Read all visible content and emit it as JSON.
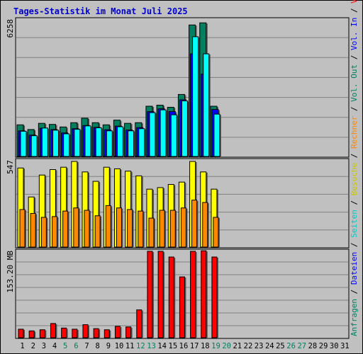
{
  "title": "Tages-Statistik im Monat Juli 2025",
  "colors": {
    "background": "#c0c0c0",
    "title": "#0000cc",
    "anfragen": "#008060",
    "dateien": "#0000ff",
    "seiten": "#00ffff",
    "besuche": "#ffff00",
    "rechner": "#ff8800",
    "volumen": "#ff0000",
    "grid": "#808080"
  },
  "right_labels": {
    "top": [
      {
        "text": "Anfragen",
        "color": "#008060"
      },
      {
        "text": " / ",
        "color": "#000000"
      },
      {
        "text": "Dateien",
        "color": "#0000ff"
      },
      {
        "text": " / ",
        "color": "#000000"
      },
      {
        "text": "Seiten",
        "color": "#00c8c8"
      },
      {
        "text": " / ",
        "color": "#000000"
      },
      {
        "text": "Besuche",
        "color": "#c8c800"
      },
      {
        "text": " / ",
        "color": "#000000"
      },
      {
        "text": "Rechner",
        "color": "#ff8800"
      },
      {
        "text": " / ",
        "color": "#000000"
      },
      {
        "text": "Vol. Out",
        "color": "#008060"
      },
      {
        "text": " / ",
        "color": "#000000"
      },
      {
        "text": "Vol. In",
        "color": "#0000ff"
      },
      {
        "text": " / ",
        "color": "#000000"
      },
      {
        "text": "Volumen",
        "color": "#ff0000"
      }
    ]
  },
  "chart_data": [
    {
      "type": "bar",
      "panel": "top",
      "max_label": "6258",
      "ylim": [
        0,
        6258
      ],
      "categories": [
        "1",
        "2",
        "3",
        "4",
        "5",
        "6",
        "7",
        "8",
        "9",
        "10",
        "11",
        "12",
        "13",
        "14",
        "15",
        "16",
        "17",
        "18",
        "19",
        "20",
        "21",
        "22",
        "23",
        "24",
        "25",
        "26",
        "27",
        "28",
        "29",
        "30",
        "31"
      ],
      "series": [
        {
          "name": "Anfragen",
          "values": [
            1480,
            1260,
            1550,
            1500,
            1380,
            1580,
            1790,
            1580,
            1480,
            1700,
            1550,
            1580,
            2350,
            2400,
            2300,
            2900,
            6150,
            6250,
            2350,
            0,
            0,
            0,
            0,
            0,
            0,
            0,
            0,
            0,
            0,
            0,
            0
          ]
        },
        {
          "name": "Dateien",
          "values": [
            1200,
            1000,
            1320,
            1260,
            1100,
            1300,
            1450,
            1360,
            1250,
            1420,
            1240,
            1350,
            2100,
            2230,
            2100,
            2650,
            4800,
            3850,
            2200,
            0,
            0,
            0,
            0,
            0,
            0,
            0,
            0,
            0,
            0,
            0,
            0
          ]
        },
        {
          "name": "Seiten",
          "values": [
            1180,
            970,
            1330,
            1230,
            1060,
            1270,
            1430,
            1340,
            1200,
            1390,
            1200,
            1300,
            2050,
            2180,
            1950,
            2600,
            5600,
            4800,
            1980,
            0,
            0,
            0,
            0,
            0,
            0,
            0,
            0,
            0,
            0,
            0,
            0
          ]
        }
      ]
    },
    {
      "type": "bar",
      "panel": "middle",
      "max_label": "547",
      "ylim": [
        0,
        547
      ],
      "categories": [
        "1",
        "2",
        "3",
        "4",
        "5",
        "6",
        "7",
        "8",
        "9",
        "10",
        "11",
        "12",
        "13",
        "14",
        "15",
        "16",
        "17",
        "18",
        "19",
        "20",
        "21",
        "22",
        "23",
        "24",
        "25",
        "26",
        "27",
        "28",
        "29",
        "30",
        "31"
      ],
      "series": [
        {
          "name": "Besuche",
          "values": [
            505,
            320,
            460,
            495,
            510,
            547,
            480,
            420,
            510,
            500,
            485,
            455,
            370,
            380,
            400,
            415,
            547,
            480,
            370,
            0,
            0,
            0,
            0,
            0,
            0,
            0,
            0,
            0,
            0,
            0,
            0
          ]
        },
        {
          "name": "Rechner",
          "values": [
            240,
            215,
            190,
            195,
            230,
            250,
            235,
            200,
            265,
            250,
            240,
            230,
            185,
            235,
            235,
            250,
            300,
            285,
            190,
            0,
            0,
            0,
            0,
            0,
            0,
            0,
            0,
            0,
            0,
            0,
            0
          ]
        }
      ]
    },
    {
      "type": "bar",
      "panel": "bottom",
      "max_label": "153.20 MB",
      "ylim": [
        0,
        153.2
      ],
      "categories": [
        "1",
        "2",
        "3",
        "4",
        "5",
        "6",
        "7",
        "8",
        "9",
        "10",
        "11",
        "12",
        "13",
        "14",
        "15",
        "16",
        "17",
        "18",
        "19",
        "20",
        "21",
        "22",
        "23",
        "24",
        "25",
        "26",
        "27",
        "28",
        "29",
        "30",
        "31"
      ],
      "series": [
        {
          "name": "Volumen",
          "values": [
            15,
            12,
            14,
            25,
            17,
            15,
            23,
            16,
            14,
            20,
            19,
            49,
            152,
            152,
            142,
            107,
            152,
            153,
            142,
            0,
            0,
            0,
            0,
            0,
            0,
            0,
            0,
            0,
            0,
            0,
            0
          ]
        }
      ]
    }
  ],
  "x_labels": [
    {
      "text": "1",
      "color": "#000000"
    },
    {
      "text": "2",
      "color": "#000000"
    },
    {
      "text": "3",
      "color": "#000000"
    },
    {
      "text": "4",
      "color": "#000000"
    },
    {
      "text": "5",
      "color": "#008060"
    },
    {
      "text": "6",
      "color": "#008060"
    },
    {
      "text": "7",
      "color": "#000000"
    },
    {
      "text": "8",
      "color": "#000000"
    },
    {
      "text": "9",
      "color": "#000000"
    },
    {
      "text": "10",
      "color": "#000000"
    },
    {
      "text": "11",
      "color": "#000000"
    },
    {
      "text": "12",
      "color": "#008060"
    },
    {
      "text": "13",
      "color": "#008060"
    },
    {
      "text": "14",
      "color": "#000000"
    },
    {
      "text": "15",
      "color": "#000000"
    },
    {
      "text": "16",
      "color": "#000000"
    },
    {
      "text": "17",
      "color": "#000000"
    },
    {
      "text": "18",
      "color": "#000000"
    },
    {
      "text": "19",
      "color": "#008060"
    },
    {
      "text": "20",
      "color": "#008060"
    },
    {
      "text": "21",
      "color": "#000000"
    },
    {
      "text": "22",
      "color": "#000000"
    },
    {
      "text": "23",
      "color": "#000000"
    },
    {
      "text": "24",
      "color": "#000000"
    },
    {
      "text": "25",
      "color": "#000000"
    },
    {
      "text": "26",
      "color": "#008060"
    },
    {
      "text": "27",
      "color": "#008060"
    },
    {
      "text": "28",
      "color": "#000000"
    },
    {
      "text": "29",
      "color": "#000000"
    },
    {
      "text": "30",
      "color": "#000000"
    },
    {
      "text": "31",
      "color": "#000000"
    }
  ]
}
